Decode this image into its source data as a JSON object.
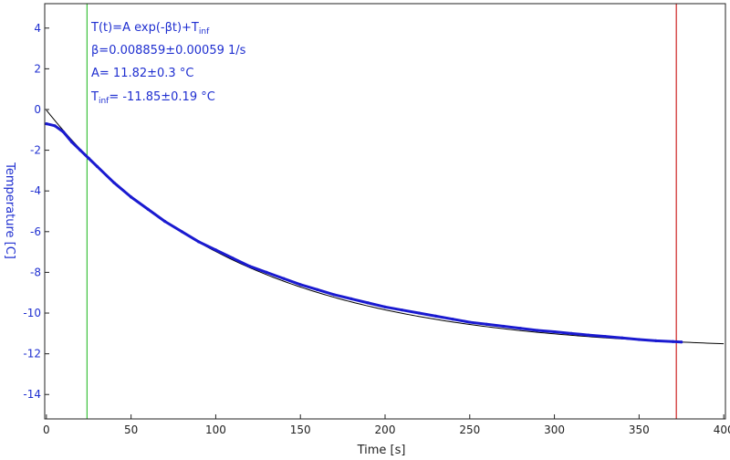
{
  "chart_data": {
    "type": "scatter",
    "title": "",
    "xlabel": "Time [s]",
    "ylabel": "Temperature [C]",
    "xlim": [
      -1,
      401
    ],
    "ylim": [
      -15.2,
      5.2
    ],
    "xticks": [
      0,
      50,
      100,
      150,
      200,
      250,
      300,
      350,
      400
    ],
    "yticks": [
      4,
      2,
      0,
      -2,
      -4,
      -6,
      -8,
      -10,
      -12,
      -14
    ],
    "grid": false,
    "annotations": {
      "formula_main": "T(t)=A exp(-βt)+T",
      "formula_sub": "inf",
      "beta": "β=0.008859±0.00059 1/s",
      "a": "A= 11.82±0.3 °C",
      "tinf_main": "T",
      "tinf_sub": "inf",
      "tinf_value": "= -11.85±0.19 °C"
    },
    "vlines": [
      {
        "x": 24,
        "color": "#3cc23c"
      },
      {
        "x": 372,
        "color": "#cc2222"
      }
    ],
    "fit": {
      "A": 11.82,
      "beta": 0.008859,
      "T_inf": -11.85,
      "x_range": [
        0,
        401
      ],
      "color": "#000000"
    },
    "series": [
      {
        "color": "#1a1ad0",
        "x": [
          0,
          5,
          10,
          15,
          20,
          25,
          30,
          40,
          50,
          60,
          70,
          80,
          90,
          100,
          110,
          120,
          130,
          140,
          150,
          160,
          170,
          180,
          190,
          200,
          210,
          220,
          230,
          240,
          250,
          260,
          270,
          280,
          290,
          300,
          310,
          320,
          330,
          340,
          350,
          360,
          370,
          375
        ],
        "y": [
          -0.7,
          -0.8,
          -1.1,
          -1.6,
          -2.0,
          -2.4,
          -2.8,
          -3.6,
          -4.3,
          -4.9,
          -5.5,
          -6.0,
          -6.5,
          -6.9,
          -7.3,
          -7.7,
          -8.0,
          -8.3,
          -8.6,
          -8.85,
          -9.1,
          -9.3,
          -9.5,
          -9.7,
          -9.85,
          -10.0,
          -10.15,
          -10.3,
          -10.45,
          -10.55,
          -10.65,
          -10.75,
          -10.85,
          -10.92,
          -11.0,
          -11.08,
          -11.15,
          -11.22,
          -11.3,
          -11.36,
          -11.4,
          -11.42
        ]
      }
    ]
  }
}
